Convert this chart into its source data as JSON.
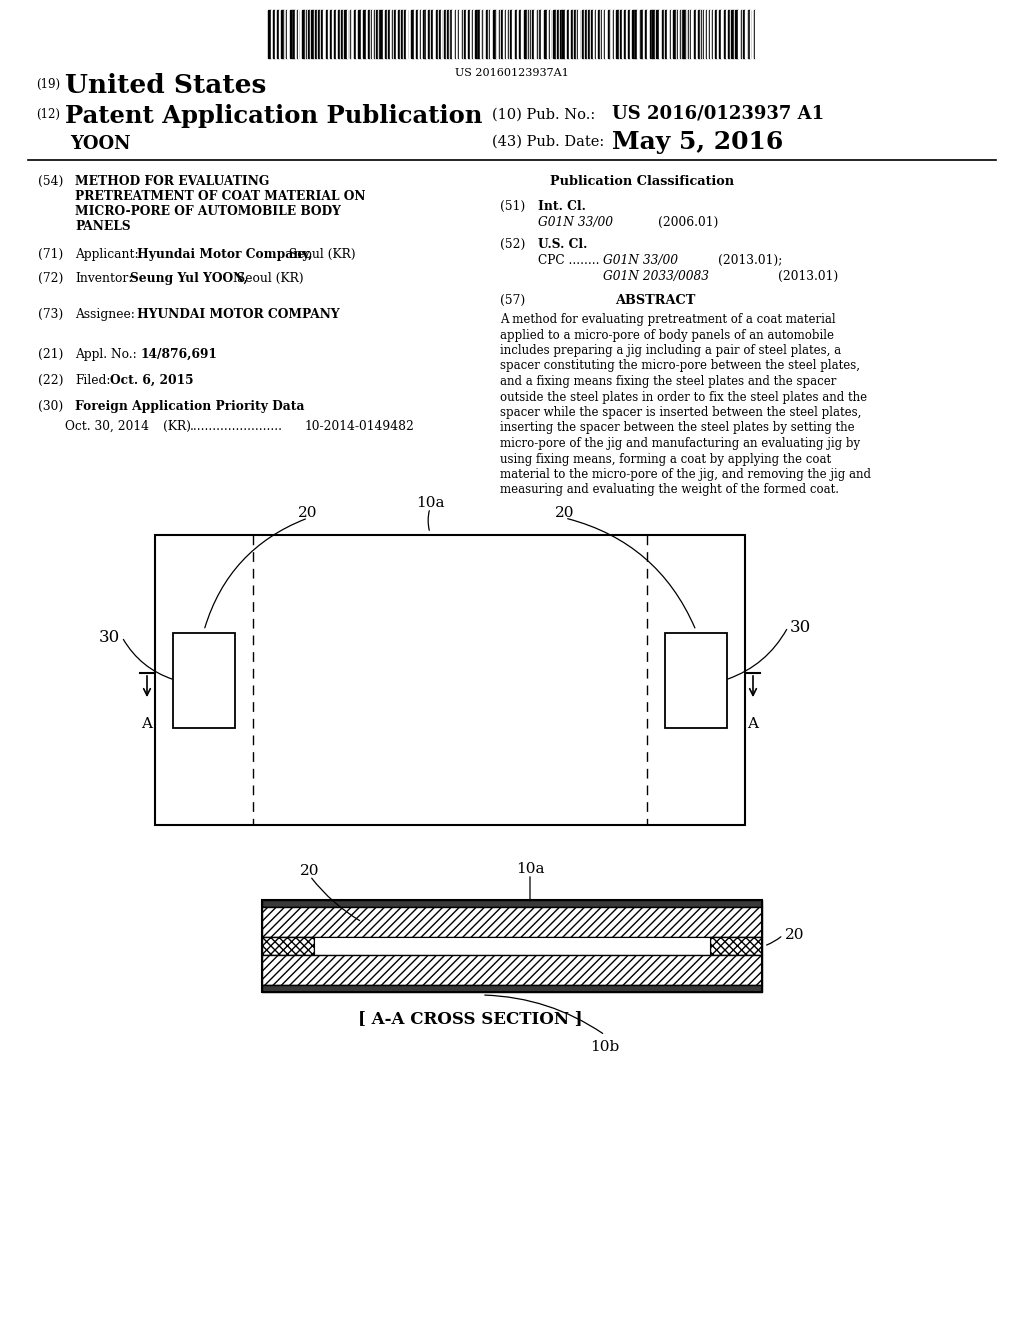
{
  "bg_color": "#ffffff",
  "barcode_text": "US 20160123937A1",
  "title_19": "(19)",
  "title_us": "United States",
  "title_12": "(12)",
  "title_pap": "Patent Application Publication",
  "title_yoon": "YOON",
  "pub_no_label": "(10) Pub. No.:",
  "pub_no_val": "US 2016/0123937 A1",
  "pub_date_label": "(43) Pub. Date:",
  "pub_date_val": "May 5, 2016",
  "item54_num": "(54)",
  "item54_line1": "METHOD FOR EVALUATING",
  "item54_line2": "PRETREATMENT OF COAT MATERIAL ON",
  "item54_line3": "MICRO-PORE OF AUTOMOBILE BODY",
  "item54_line4": "PANELS",
  "item71_num": "(71)",
  "item71_label": "Applicant:",
  "item71_bold": "Hyundai Motor Company,",
  "item71_rest": " Seoul (KR)",
  "item72_num": "(72)",
  "item72_label": "Inventor:",
  "item72_bold": "Seung Yul YOON,",
  "item72_rest": " Seoul (KR)",
  "item73_num": "(73)",
  "item73_label": "Assignee:",
  "item73_val": "HYUNDAI MOTOR COMPANY",
  "item21_num": "(21)",
  "item21_label": "Appl. No.:",
  "item21_val": "14/876,691",
  "item22_num": "(22)",
  "item22_label": "Filed:",
  "item22_val": "Oct. 6, 2015",
  "item30_num": "(30)",
  "item30_label": "Foreign Application Priority Data",
  "item30_date": "Oct. 30, 2014",
  "item30_country": "(KR)",
  "item30_dots": "........................",
  "item30_appno": "10-2014-0149482",
  "pub_class_title": "Publication Classification",
  "item51_num": "(51)",
  "item51_label": "Int. Cl.",
  "item51_class": "G01N 33/00",
  "item51_year": "(2006.01)",
  "item52_num": "(52)",
  "item52_label": "U.S. Cl.",
  "item52_line": "CPC ........",
  "item52_class1": "G01N 33/00",
  "item52_year1": "(2013.01);",
  "item52_class2": "G01N 2033/0083",
  "item52_year2": "(2013.01)",
  "item57_num": "(57)",
  "item57_label": "ABSTRACT",
  "abstract_line1": "A method for evaluating pretreatment of a coat material",
  "abstract_line2": "applied to a micro-pore of body panels of an automobile",
  "abstract_line3": "includes preparing a jig including a pair of steel plates, a",
  "abstract_line4": "spacer constituting the micro-pore between the steel plates,",
  "abstract_line5": "and a fixing means fixing the steel plates and the spacer",
  "abstract_line6": "outside the steel plates in order to fix the steel plates and the",
  "abstract_line7": "spacer while the spacer is inserted between the steel plates,",
  "abstract_line8": "inserting the spacer between the steel plates by setting the",
  "abstract_line9": "micro-pore of the jig and manufacturing an evaluating jig by",
  "abstract_line10": "using fixing means, forming a coat by applying the coat",
  "abstract_line11": "material to the micro-pore of the jig, and removing the jig and",
  "abstract_line12": "measuring and evaluating the weight of the formed coat.",
  "fig1_label_20a": "20",
  "fig1_label_20b": "20",
  "fig1_label_10a": "10a",
  "fig1_label_30a": "30",
  "fig1_label_30b": "30",
  "fig1_label_A": "A",
  "fig2_label_20a": "20",
  "fig2_label_10a": "10a",
  "fig2_label_20b": "20",
  "fig2_label_10b": "10b",
  "fig2_caption": "[ A-A CROSS SECTION ]"
}
